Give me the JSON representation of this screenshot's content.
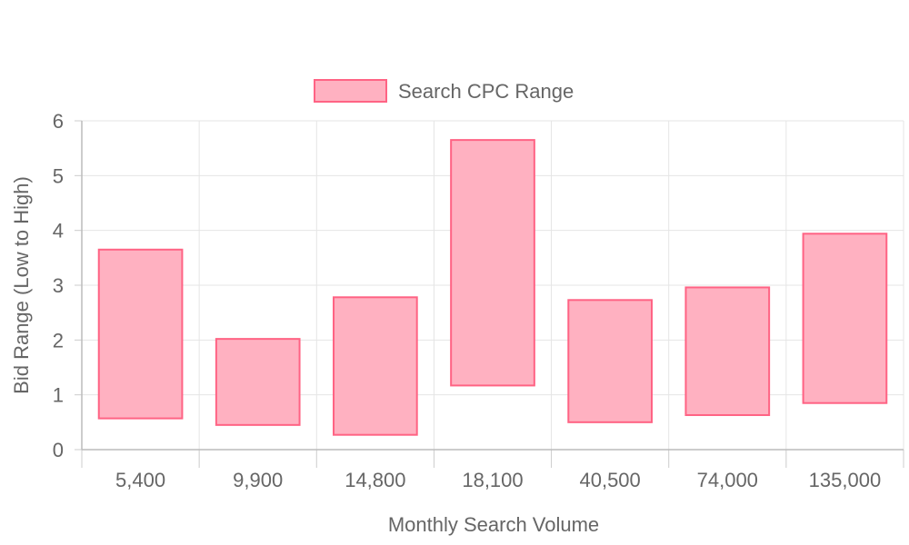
{
  "chart_data": {
    "type": "bar",
    "subtype": "floating-range",
    "categories": [
      "5,400",
      "9,900",
      "14,800",
      "18,100",
      "40,500",
      "74,000",
      "135,000"
    ],
    "series": [
      {
        "name": "Search CPC Range",
        "ranges": [
          [
            0.57,
            3.65
          ],
          [
            0.45,
            2.02
          ],
          [
            0.27,
            2.78
          ],
          [
            1.17,
            5.65
          ],
          [
            0.5,
            2.73
          ],
          [
            0.63,
            2.96
          ],
          [
            0.85,
            3.94
          ]
        ],
        "fill_color": "#ffb1c1",
        "border_color": "#ff6384"
      }
    ],
    "xlabel": "Monthly Search Volume",
    "ylabel": "Bid Range (Low to High)",
    "ylim": [
      0,
      6
    ],
    "yticks": [
      "0",
      "1",
      "2",
      "3",
      "4",
      "5",
      "6"
    ],
    "grid": true,
    "legend_position": "top"
  }
}
